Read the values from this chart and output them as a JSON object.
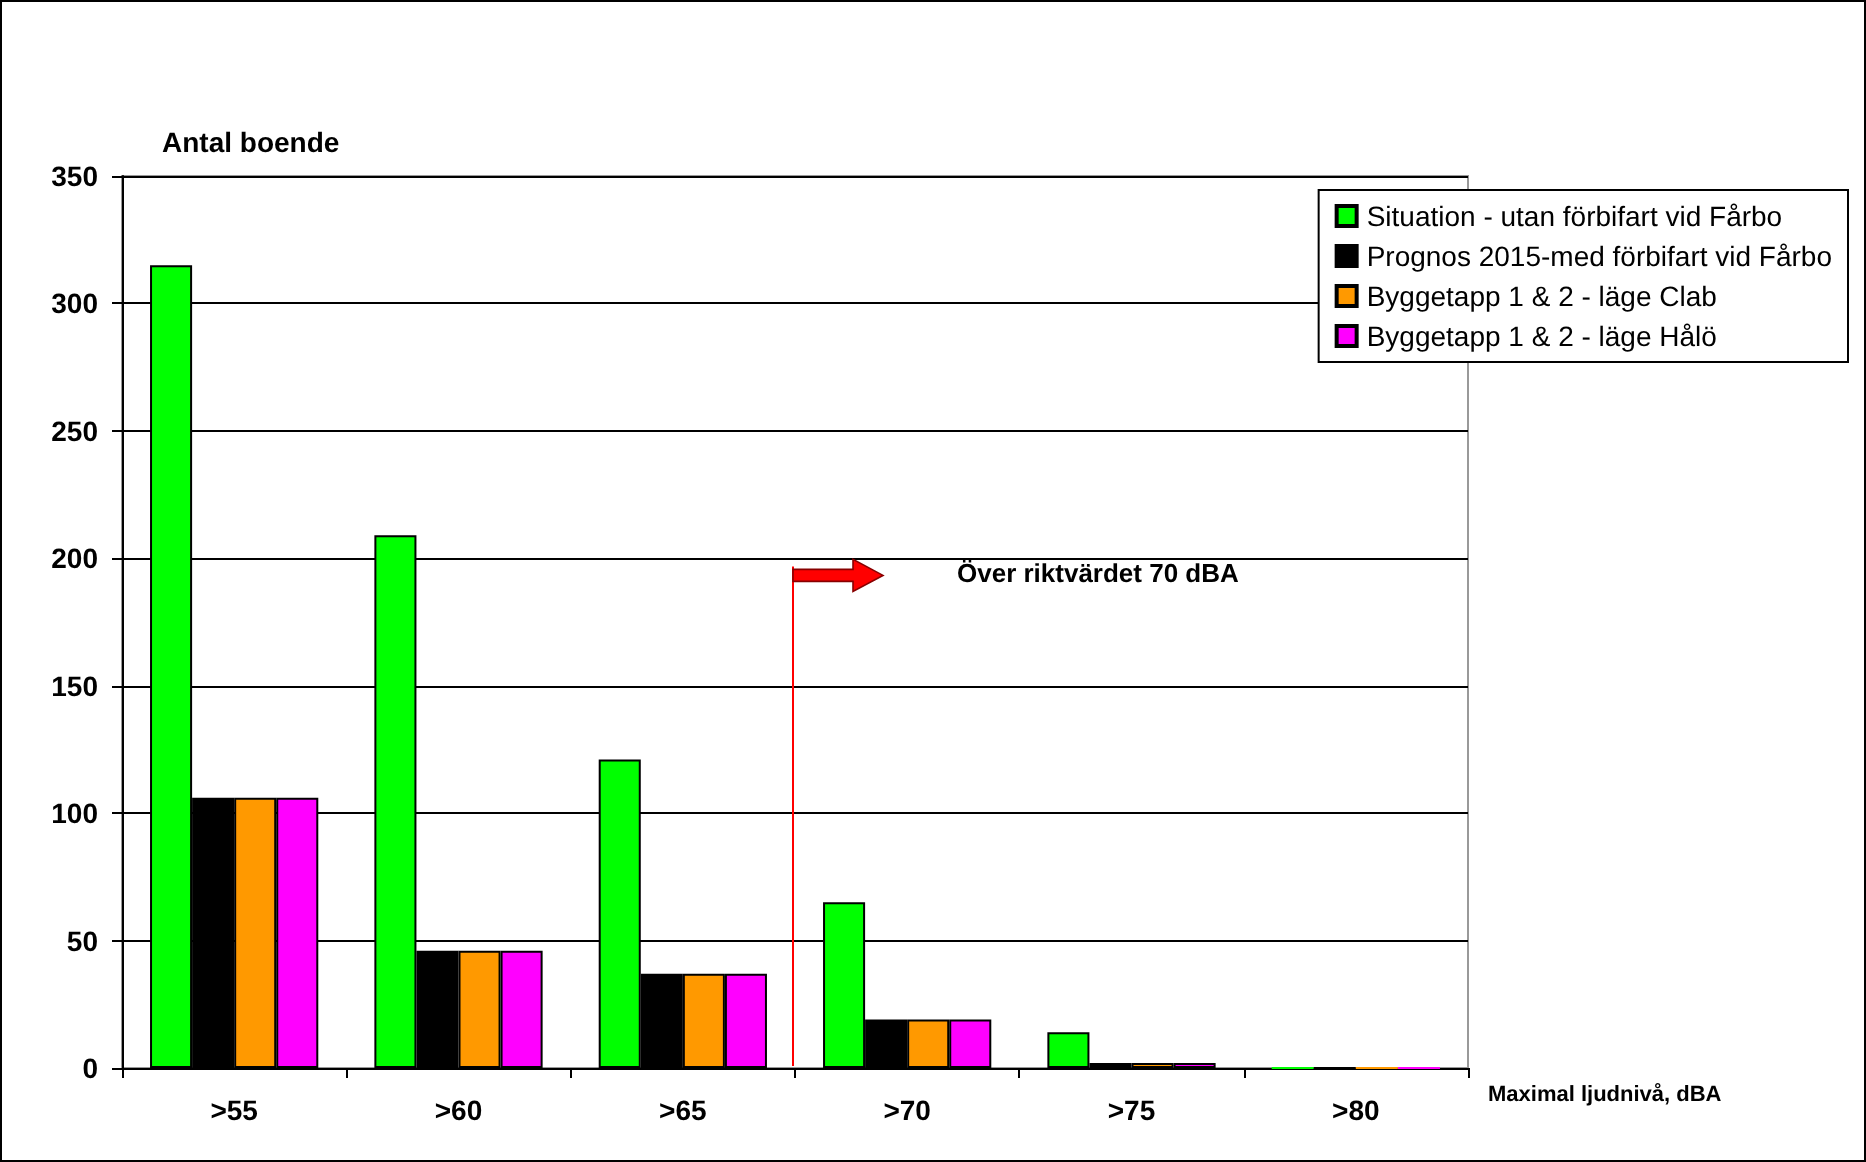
{
  "chart_data": {
    "type": "bar",
    "ylabel": "Antal boende",
    "xlabel": "Maximal ljudnivå, dBA",
    "categories": [
      ">55",
      ">60",
      ">65",
      ">70",
      ">75",
      ">80"
    ],
    "series": [
      {
        "name": "Situation - utan förbifart vid Fårbo",
        "color": "#00ff00",
        "values": [
          315,
          209,
          121,
          65,
          14,
          0
        ]
      },
      {
        "name": "Prognos 2015-med förbifart vid Fårbo",
        "color": "#000000",
        "values": [
          106,
          46,
          37,
          19,
          2,
          0
        ]
      },
      {
        "name": "Byggetapp 1 & 2 - läge Clab",
        "color": "#ff9900",
        "values": [
          106,
          46,
          37,
          19,
          2,
          0
        ]
      },
      {
        "name": "Byggetapp 1 & 2 - läge Hålö",
        "color": "#ff00ff",
        "values": [
          106,
          46,
          37,
          19,
          2,
          0
        ]
      }
    ],
    "ylim": [
      0,
      350
    ],
    "yticks": [
      0,
      50,
      100,
      150,
      200,
      250,
      300,
      350
    ],
    "grid": "y",
    "legend": "top right",
    "ref_lines": [
      {
        "axis": "x",
        "value": ">70",
        "color": "#ff0000"
      }
    ],
    "annotations": [
      "Över riktvärdet 70 dBA"
    ]
  }
}
